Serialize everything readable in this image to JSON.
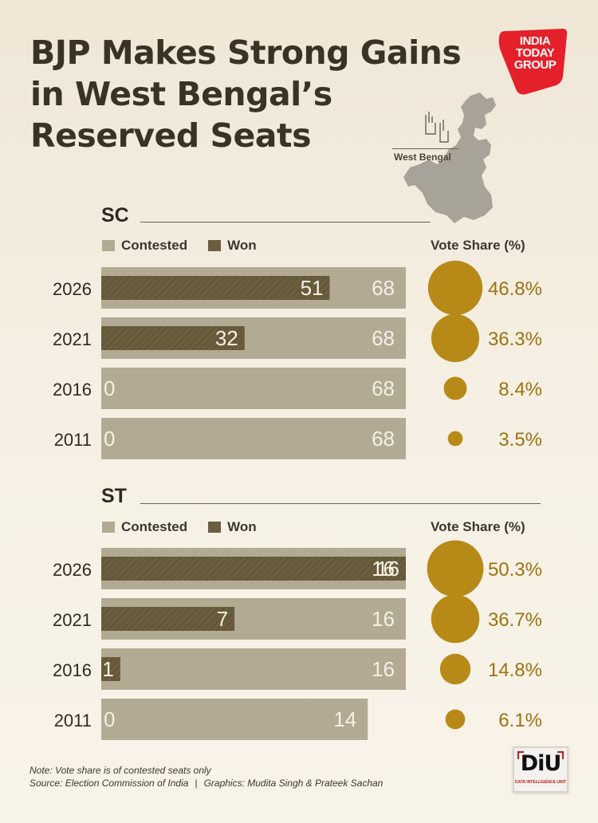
{
  "title": {
    "line1": "BJP Makes Strong Gains",
    "line2": "in West Bengal’s",
    "line3": "Reserved Seats"
  },
  "logo": {
    "line1": "INDIA",
    "line2": "TODAY",
    "line3": "GROUP",
    "color": "#e4202a"
  },
  "map_label": "West Bengal",
  "legend": {
    "contested": "Contested",
    "won": "Won",
    "vote_share": "Vote Share (%)"
  },
  "colors": {
    "contested": "#b2aa93",
    "won": "#6b5e3e",
    "vote_circle": "#b78a18",
    "vote_text": "#9b7410"
  },
  "chart_data": [
    {
      "type": "bar",
      "section": "SC",
      "categories": [
        "2026",
        "2021",
        "2016",
        "2011"
      ],
      "series": [
        {
          "name": "Contested",
          "values": [
            68,
            68,
            68,
            68
          ]
        },
        {
          "name": "Won",
          "values": [
            51,
            32,
            0,
            0
          ]
        }
      ],
      "vote_share": [
        46.8,
        36.3,
        8.4,
        3.5
      ],
      "vote_share_labels": [
        "46.8%",
        "36.3%",
        "8.4%",
        "3.5%"
      ],
      "xlim": [
        0,
        68
      ]
    },
    {
      "type": "bar",
      "section": "ST",
      "categories": [
        "2026",
        "2021",
        "2016",
        "2011"
      ],
      "series": [
        {
          "name": "Contested",
          "values": [
            16,
            16,
            16,
            14
          ]
        },
        {
          "name": "Won",
          "values": [
            16,
            7,
            1,
            0
          ]
        }
      ],
      "vote_share": [
        50.3,
        36.7,
        14.8,
        6.1
      ],
      "vote_share_labels": [
        "50.3%",
        "36.7%",
        "14.8%",
        "6.1%"
      ],
      "xlim": [
        0,
        16
      ]
    }
  ],
  "footer": {
    "note": "Note: Vote share is of contested seats only",
    "source": "Source: Election Commission of India",
    "separator": "|",
    "graphics": "Graphics: Mudita Singh & Prateek Sachan"
  },
  "diu": {
    "mark": "DiU",
    "sub": "DATA INTELLIGENCE UNIT"
  }
}
